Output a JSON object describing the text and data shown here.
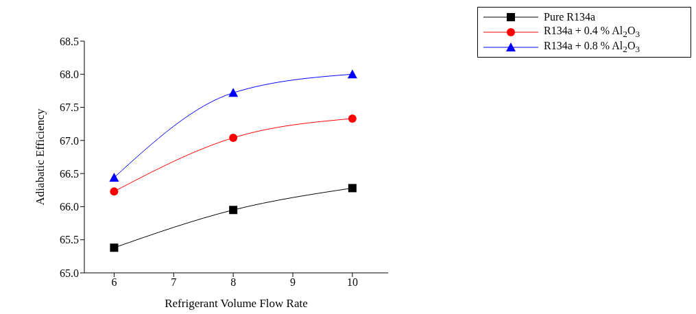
{
  "chart_data": {
    "type": "line",
    "xlabel": "Refrigerant Volume Flow Rate",
    "ylabel": "Adiabatic Efficiency",
    "x": [
      6,
      8,
      10
    ],
    "series": [
      {
        "name": "Pure R134a",
        "color": "#000000",
        "marker": "square",
        "values": [
          65.38,
          65.95,
          66.28
        ]
      },
      {
        "name": "R134a + 0.4 % Al$_{2}$O$_{3}$",
        "color": "#ff0000",
        "marker": "circle",
        "values": [
          66.23,
          67.04,
          67.33
        ]
      },
      {
        "name": "R134a + 0.8 % Al$_{2}$O$_{3}$",
        "color": "#0000ff",
        "marker": "triangle",
        "values": [
          66.44,
          67.72,
          68.0
        ]
      }
    ],
    "xlim": [
      5.5,
      10.6
    ],
    "xticks": [
      6,
      7,
      8,
      9,
      10
    ],
    "ylim": [
      65.0,
      68.5
    ],
    "yticks": [
      {
        "value": 65,
        "label": "65.0"
      },
      65.5,
      {
        "value": 66,
        "label": "66.0"
      },
      66.5,
      {
        "value": 67,
        "label": "67.0"
      },
      67.5,
      {
        "value": 68,
        "label": "68.0"
      },
      68.5
    ],
    "grid": false,
    "legend": "top right"
  }
}
